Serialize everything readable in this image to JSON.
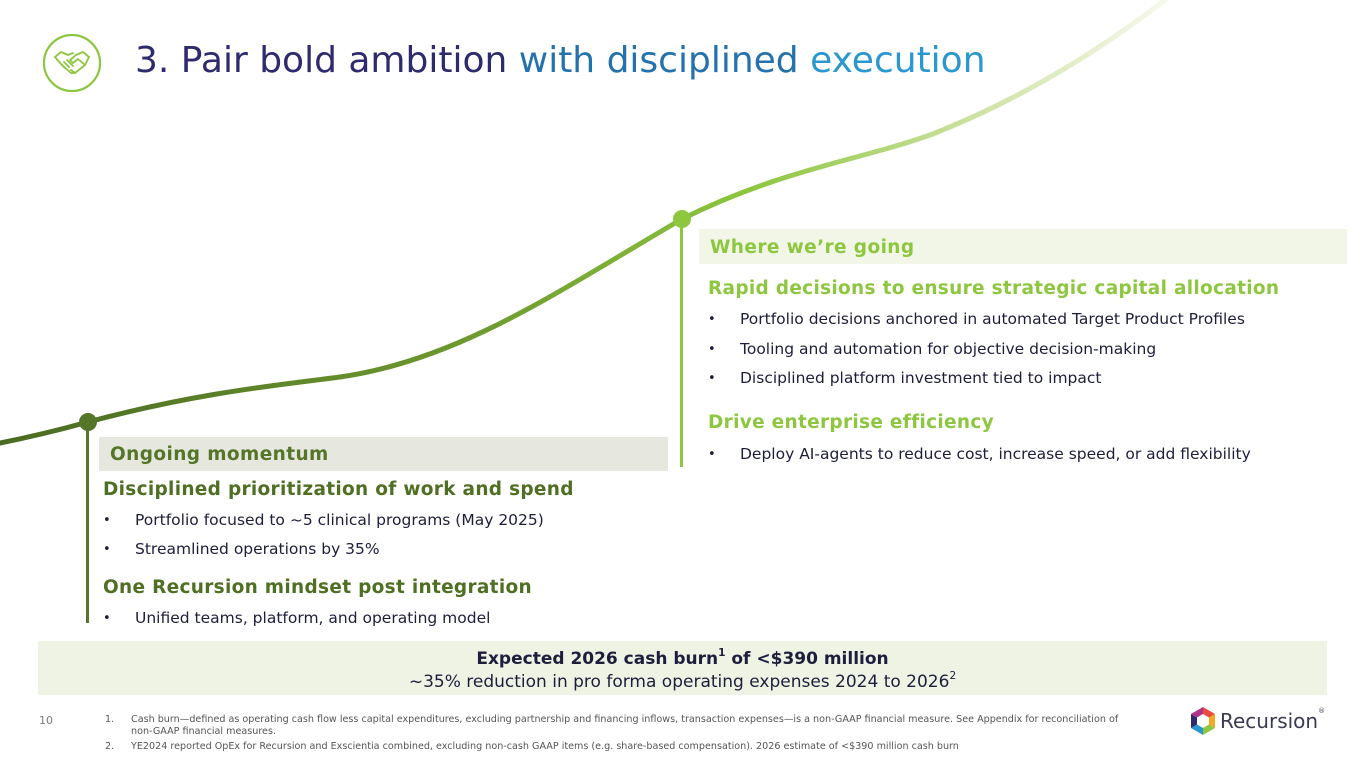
{
  "title": {
    "part1": "3. Pair bold ambition ",
    "part2": "with disciplined ",
    "part3": "execution"
  },
  "left": {
    "band": "Ongoing momentum",
    "heading1": "Disciplined prioritization of work and spend",
    "bullets1": [
      "Portfolio focused to ~5 clinical programs (May 2025)",
      "Streamlined operations by 35%"
    ],
    "heading2": "One Recursion mindset post integration",
    "bullets2": [
      "Unified teams, platform, and operating model"
    ]
  },
  "right": {
    "band": "Where we’re going",
    "heading1": "Rapid decisions to ensure strategic capital allocation",
    "bullets1": [
      "Portfolio decisions anchored in automated Target Product Profiles",
      "Tooling and automation for objective decision-making",
      "Disciplined platform investment tied to impact"
    ],
    "heading2": "Drive enterprise efficiency",
    "bullets2": [
      "Deploy AI-agents to reduce cost, increase speed, or add flexibility"
    ]
  },
  "bullet_char": "•",
  "summary": {
    "line1_main": "Expected 2026 cash burn",
    "line1_sup": "1",
    "line1_rest": " of <$390 million",
    "line2_main": "~35% reduction in pro forma operating expenses 2024 to 2026",
    "line2_sup": "2"
  },
  "page_number": "10",
  "footnotes": [
    {
      "num": "1.",
      "text": "Cash burn—defined as operating cash flow less capital expenditures, excluding partnership and financing inflows, transaction expenses—is a non-GAAP financial measure. See Appendix for reconciliation of non-GAAP financial measures."
    },
    {
      "num": "2.",
      "text": "YE2024 reported OpEx for Recursion and Exscientia combined, excluding non-cash GAAP items (e.g. share-based compensation). 2026 estimate of <$390 million cash burn"
    }
  ],
  "logo": {
    "text": "Recursion",
    "mark": "®"
  },
  "colors": {
    "navy": "#2e2a6e",
    "blue": "#2472ad",
    "lightblue": "#2a97cf",
    "darkgreen": "#557528",
    "lightgreen": "#8dc63f"
  },
  "icons": {
    "title_icon": "handshake-icon",
    "logo_icon": "recursion-hexagon-icon"
  }
}
